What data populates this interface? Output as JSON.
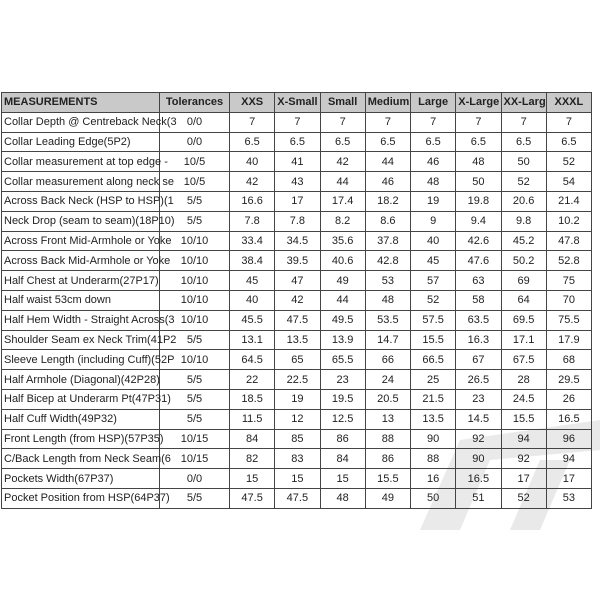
{
  "headers": [
    "MEASUREMENTS",
    "Tolerances",
    "XXS",
    "X-Small",
    "Small",
    "Medium",
    "Large",
    "X-Large",
    "XX-Larg",
    "XXXL"
  ],
  "rows": [
    {
      "name": "Collar Depth @ Centreback Neck(3",
      "tol": "0/0",
      "values": [
        "7",
        "7",
        "7",
        "7",
        "7",
        "7",
        "7",
        "7"
      ]
    },
    {
      "name": "Collar Leading Edge(5P2)",
      "tol": "0/0",
      "values": [
        "6.5",
        "6.5",
        "6.5",
        "6.5",
        "6.5",
        "6.5",
        "6.5",
        "6.5"
      ]
    },
    {
      "name": "Collar measurement at top edge -",
      "tol": "10/5",
      "values": [
        "40",
        "41",
        "42",
        "44",
        "46",
        "48",
        "50",
        "52"
      ]
    },
    {
      "name": "Collar measurement along neck se",
      "tol": "10/5",
      "values": [
        "42",
        "43",
        "44",
        "46",
        "48",
        "50",
        "52",
        "54"
      ]
    },
    {
      "name": "Across Back Neck (HSP to HSP)(1",
      "tol": "5/5",
      "values": [
        "16.6",
        "17",
        "17.4",
        "18.2",
        "19",
        "19.8",
        "20.6",
        "21.4"
      ]
    },
    {
      "name": "Neck Drop (seam to seam)(18P10)",
      "tol": "5/5",
      "values": [
        "7.8",
        "7.8",
        "8.2",
        "8.6",
        "9",
        "9.4",
        "9.8",
        "10.2"
      ]
    },
    {
      "name": "Across Front Mid-Armhole or Yoke",
      "tol": "10/10",
      "values": [
        "33.4",
        "34.5",
        "35.6",
        "37.8",
        "40",
        "42.6",
        "45.2",
        "47.8"
      ]
    },
    {
      "name": "Across Back Mid-Armhole or Yoke",
      "tol": "10/10",
      "values": [
        "38.4",
        "39.5",
        "40.6",
        "42.8",
        "45",
        "47.6",
        "50.2",
        "52.8"
      ]
    },
    {
      "name": "Half Chest at Underarm(27P17)",
      "tol": "10/10",
      "values": [
        "45",
        "47",
        "49",
        "53",
        "57",
        "63",
        "69",
        "75"
      ]
    },
    {
      "name": "Half waist 53cm down",
      "tol": "10/10",
      "values": [
        "40",
        "42",
        "44",
        "48",
        "52",
        "58",
        "64",
        "70"
      ]
    },
    {
      "name": "Half Hem Width - Straight Across(3",
      "tol": "10/10",
      "values": [
        "45.5",
        "47.5",
        "49.5",
        "53.5",
        "57.5",
        "63.5",
        "69.5",
        "75.5"
      ]
    },
    {
      "name": "Shoulder Seam ex Neck Trim(41P2",
      "tol": "5/5",
      "values": [
        "13.1",
        "13.5",
        "13.9",
        "14.7",
        "15.5",
        "16.3",
        "17.1",
        "17.9"
      ]
    },
    {
      "name": "Sleeve Length (including Cuff)(52P",
      "tol": "10/10",
      "values": [
        "64.5",
        "65",
        "65.5",
        "66",
        "66.5",
        "67",
        "67.5",
        "68"
      ]
    },
    {
      "name": "Half Armhole (Diagonal)(42P28)",
      "tol": "5/5",
      "values": [
        "22",
        "22.5",
        "23",
        "24",
        "25",
        "26.5",
        "28",
        "29.5"
      ]
    },
    {
      "name": "Half Bicep at Underarm Pt(47P31)",
      "tol": "5/5",
      "values": [
        "18.5",
        "19",
        "19.5",
        "20.5",
        "21.5",
        "23",
        "24.5",
        "26"
      ]
    },
    {
      "name": "Half Cuff Width(49P32)",
      "tol": "5/5",
      "values": [
        "11.5",
        "12",
        "12.5",
        "13",
        "13.5",
        "14.5",
        "15.5",
        "16.5"
      ]
    },
    {
      "name": "Front Length (from HSP)(57P35)",
      "tol": "10/15",
      "values": [
        "84",
        "85",
        "86",
        "88",
        "90",
        "92",
        "94",
        "96"
      ]
    },
    {
      "name": "C/Back Length from Neck Seam(6",
      "tol": "10/15",
      "values": [
        "82",
        "83",
        "84",
        "86",
        "88",
        "90",
        "92",
        "94"
      ]
    },
    {
      "name": "Pockets Width(67P37)",
      "tol": "0/0",
      "values": [
        "15",
        "15",
        "15",
        "15.5",
        "16",
        "16.5",
        "17",
        "17"
      ]
    },
    {
      "name": "Pocket Position from HSP(64P37)",
      "tol": "5/5",
      "values": [
        "47.5",
        "47.5",
        "48",
        "49",
        "50",
        "51",
        "52",
        "53"
      ]
    }
  ]
}
